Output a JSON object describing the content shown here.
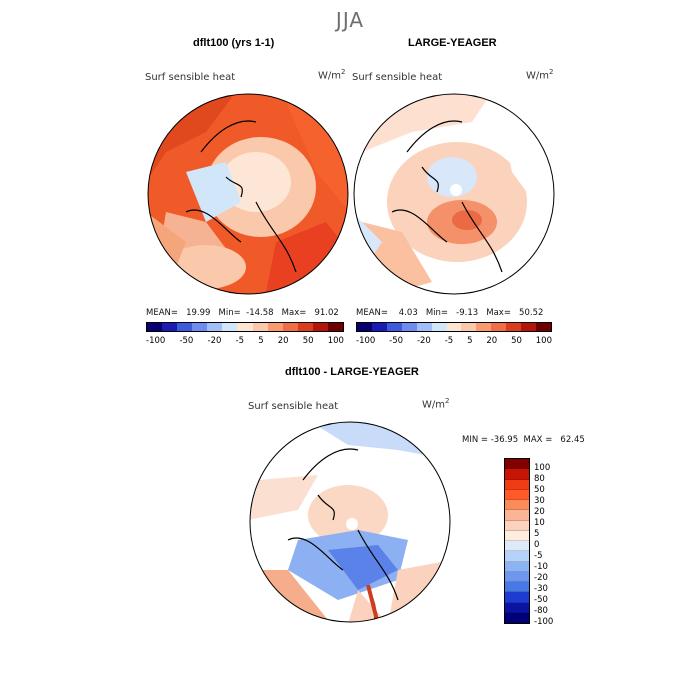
{
  "title": "JJA",
  "panels": [
    {
      "title": "dflt100 (yrs 1-1)",
      "variable": "Surf sensible heat",
      "units": "W/m",
      "units_sup": "2",
      "stats_line": "MEAN=   19.99   Min=  -14.58   Max=   91.02",
      "colorbar_labels": [
        "-100",
        "-50",
        "-20",
        "-5",
        "5",
        "20",
        "50",
        "100"
      ]
    },
    {
      "title": "LARGE-YEAGER",
      "variable": "Surf sensible heat",
      "units": "W/m",
      "units_sup": "2",
      "stats_line": "MEAN=    4.03   Min=   -9.13   Max=   50.52",
      "colorbar_labels": [
        "-100",
        "-50",
        "-20",
        "-5",
        "5",
        "20",
        "50",
        "100"
      ]
    },
    {
      "title": "dflt100 - LARGE-YEAGER",
      "variable": "Surf sensible heat",
      "units": "W/m",
      "units_sup": "2",
      "stats_line": "MIN = -36.95  MAX =   62.45",
      "colorbar_labels": [
        "100",
        "80",
        "50",
        "30",
        "20",
        "10",
        "5",
        "0",
        "-5",
        "-10",
        "-20",
        "-30",
        "-50",
        "-80",
        "-100"
      ]
    }
  ],
  "colors": {
    "scale_top": [
      "#08006e",
      "#1a1ab4",
      "#3c5adc",
      "#6e8cf0",
      "#a0befa",
      "#d2e6fa",
      "#fae6d2",
      "#fac8aa",
      "#fa9b6e",
      "#f06e46",
      "#dc3c1e",
      "#b4140a",
      "#6e0000"
    ],
    "scale_diff": [
      "#820000",
      "#c81405",
      "#f03c14",
      "#ff5a28",
      "#fa8c5a",
      "#fab496",
      "#fad2be",
      "#ffece0",
      "#dceafa",
      "#b4d2fa",
      "#8cb4f5",
      "#6e96f0",
      "#4678e6",
      "#1e3cd2",
      "#0a14a0",
      "#000078"
    ]
  }
}
